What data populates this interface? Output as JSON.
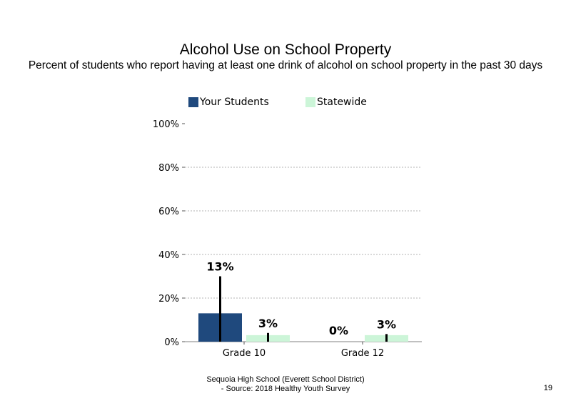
{
  "chart_data": {
    "type": "bar",
    "title": "Alcohol Use on School Property",
    "subtitle": "Percent of students who report having at least one drink of alcohol on school property in the past 30 days",
    "categories": [
      "Grade 10",
      "Grade 12"
    ],
    "series": [
      {
        "name": "Your Students",
        "values": [
          13,
          0
        ],
        "labels": [
          "13%",
          "0%"
        ],
        "error_upper": [
          30,
          null
        ],
        "color": "#1f497d"
      },
      {
        "name": "Statewide",
        "values": [
          3,
          3
        ],
        "labels": [
          "3%",
          "3%"
        ],
        "error_upper": [
          4,
          3.5
        ],
        "color": "#ccf5d8"
      }
    ],
    "ylim": [
      0,
      100
    ],
    "yticks": [
      0,
      20,
      40,
      60,
      80,
      100
    ],
    "ytick_labels": [
      "0%",
      "20%",
      "40%",
      "60%",
      "80%",
      "100%"
    ],
    "grid": true,
    "legend_position": "top"
  },
  "footer": {
    "line1": "Sequoia High School (Everett School District)",
    "line2": "- Source: 2018 Healthy Youth Survey"
  },
  "page_number": "19"
}
